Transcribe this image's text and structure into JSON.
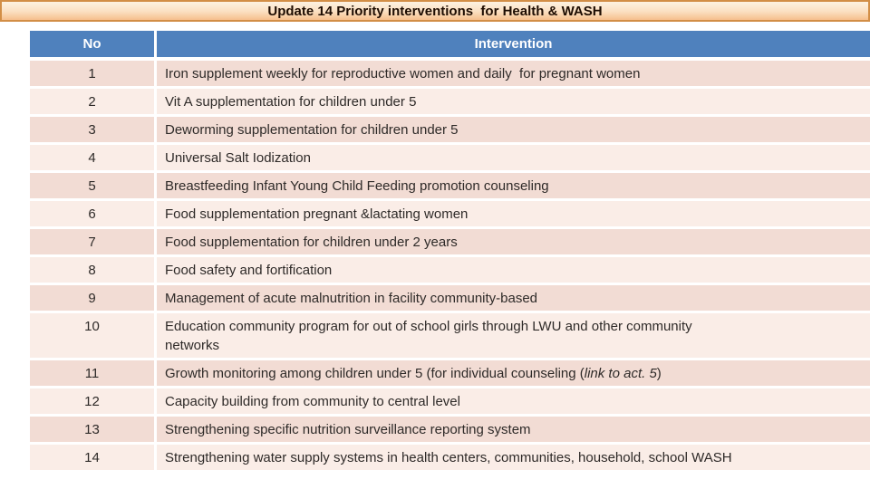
{
  "slide": {
    "title": "Update 14 Priority interventions  for Health & WASH"
  },
  "table": {
    "headers": {
      "no": "No",
      "intervention": "Intervention"
    },
    "rows": [
      {
        "no": "1",
        "parts": [
          {
            "text": "Iron supplement weekly for reproductive women and daily  for pregnant women",
            "italic": false
          }
        ]
      },
      {
        "no": "2",
        "parts": [
          {
            "text": "Vit A supplementation for children under 5",
            "italic": false
          }
        ]
      },
      {
        "no": "3",
        "parts": [
          {
            "text": "Deworming supplementation for children under 5",
            "italic": false
          }
        ]
      },
      {
        "no": "4",
        "parts": [
          {
            "text": "Universal Salt Iodization",
            "italic": false
          }
        ]
      },
      {
        "no": "5",
        "parts": [
          {
            "text": "Breastfeeding Infant Young Child Feeding promotion counseling",
            "italic": false
          }
        ]
      },
      {
        "no": "6",
        "parts": [
          {
            "text": "Food supplementation pregnant &lactating women",
            "italic": false
          }
        ]
      },
      {
        "no": "7",
        "parts": [
          {
            "text": "Food supplementation for children under 2 years",
            "italic": false
          }
        ]
      },
      {
        "no": "8",
        "parts": [
          {
            "text": "Food safety and fortification",
            "italic": false
          }
        ]
      },
      {
        "no": "9",
        "parts": [
          {
            "text": "Management of acute malnutrition in facility community-based",
            "italic": false
          }
        ]
      },
      {
        "no": "10",
        "parts": [
          {
            "text": "Education community program for out of school girls through LWU and other community\nnetworks",
            "italic": false
          }
        ]
      },
      {
        "no": "11",
        "parts": [
          {
            "text": "Growth monitoring among children under 5 (for individual counseling (",
            "italic": false
          },
          {
            "text": "link to act. 5",
            "italic": true
          },
          {
            "text": ")",
            "italic": false
          }
        ]
      },
      {
        "no": "12",
        "parts": [
          {
            "text": "Capacity building from community to central level",
            "italic": false
          }
        ]
      },
      {
        "no": "13",
        "parts": [
          {
            "text": "Strengthening specific nutrition surveillance reporting system",
            "italic": false
          }
        ]
      },
      {
        "no": "14",
        "parts": [
          {
            "text": "Strengthening water supply systems in health centers, communities, household, school WASH",
            "italic": false
          }
        ]
      }
    ]
  },
  "colors": {
    "header_bg": "#4f81bd",
    "header_text": "#ffffff",
    "row_band_dark": "#f2dcd4",
    "row_band_light": "#faede7",
    "title_border": "#d28e46",
    "title_gradient_top": "#fdf2e1",
    "title_gradient_bottom": "#f6bf8d",
    "title_text": "#1e0d02",
    "body_text": "#2e2a28",
    "gutter": "#ffffff"
  }
}
